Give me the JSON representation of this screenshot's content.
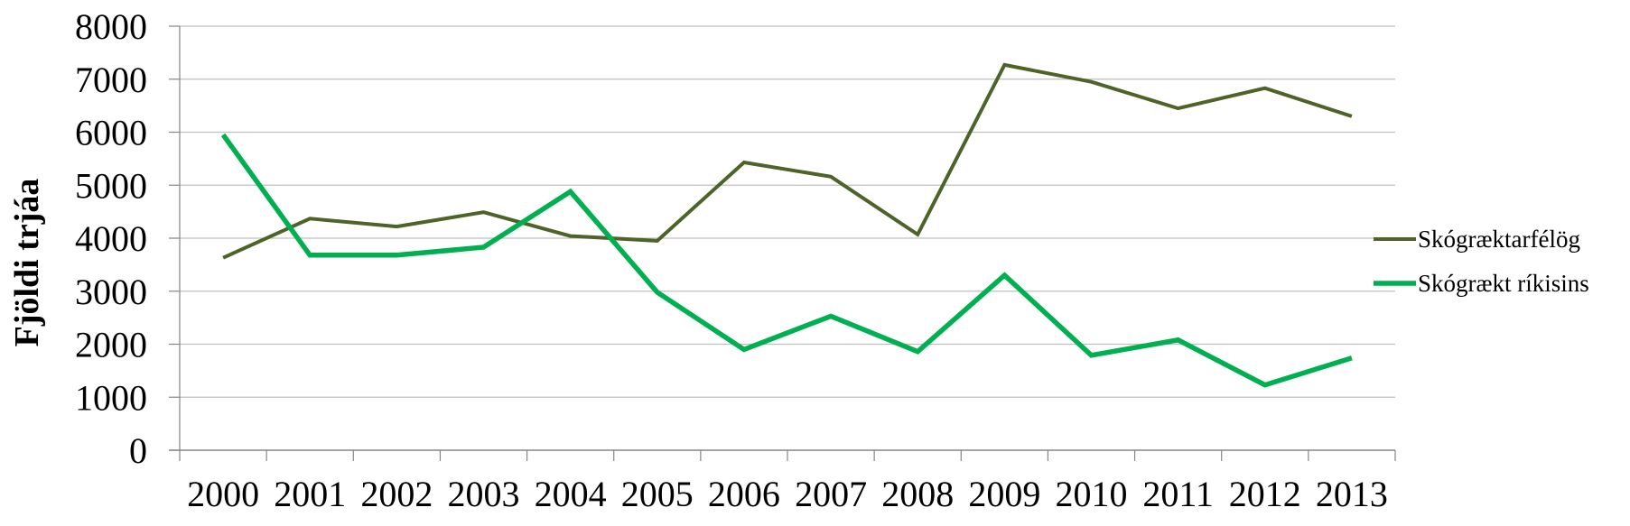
{
  "chart_data": {
    "type": "line",
    "title": "",
    "xlabel": "",
    "ylabel": "Fjöldi trjáa",
    "ylim": [
      0,
      8000
    ],
    "yticks": [
      0,
      1000,
      2000,
      3000,
      4000,
      5000,
      6000,
      7000,
      8000
    ],
    "grid": true,
    "legend_position": "right",
    "categories": [
      "2000",
      "2001",
      "2002",
      "2003",
      "2004",
      "2005",
      "2006",
      "2007",
      "2008",
      "2009",
      "2010",
      "2011",
      "2012",
      "2013"
    ],
    "series": [
      {
        "name": "Skógræktarfélög",
        "color": "#4F6228",
        "values": [
          3630,
          4370,
          4220,
          4490,
          4040,
          3950,
          5430,
          5160,
          4070,
          7270,
          6950,
          6450,
          6830,
          6300
        ]
      },
      {
        "name": "Skógrækt ríkisins",
        "color": "#00B050",
        "values": [
          5950,
          3680,
          3680,
          3830,
          4880,
          2980,
          1900,
          2530,
          1860,
          3300,
          1790,
          2080,
          1230,
          1740
        ]
      }
    ]
  },
  "colors": {
    "grid": "#BFBFBF",
    "axis": "#868686",
    "text": "#000000"
  }
}
